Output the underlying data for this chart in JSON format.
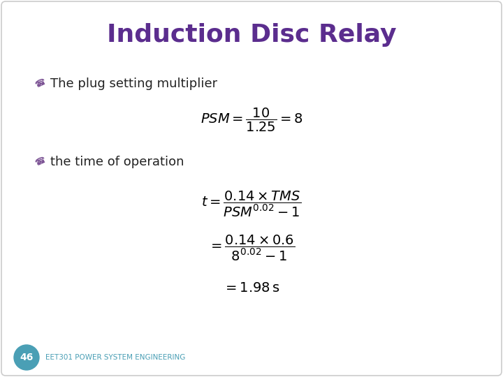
{
  "title": "Induction Disc Relay",
  "title_color": "#5b2d8e",
  "title_fontsize": 26,
  "bullet1_text": "The plug setting multiplier",
  "bullet2_text": "the time of operation",
  "bullet_color": "#222222",
  "bullet_fontsize": 13,
  "bullet_icon_color": "#7b5294",
  "eq1": "$PSM = \\dfrac{10}{1.25} = 8$",
  "eq2_line1": "$t = \\dfrac{0.14 \\times TMS}{PSM^{0.02} - 1}$",
  "eq2_line2": "$= \\dfrac{0.14 \\times 0.6}{8^{0.02} - 1}$",
  "eq2_line3": "$= 1.98\\,\\mathrm{s}$",
  "eq_fontsize": 13,
  "footer_number": "46",
  "footer_text": "EET301 POWER SYSTEM ENGINEERING",
  "footer_color": "#4a9fb5",
  "footer_circle_color": "#4a9fb5",
  "footer_number_color": "#ffffff",
  "bg_color": "#ffffff",
  "border_color": "#cccccc"
}
